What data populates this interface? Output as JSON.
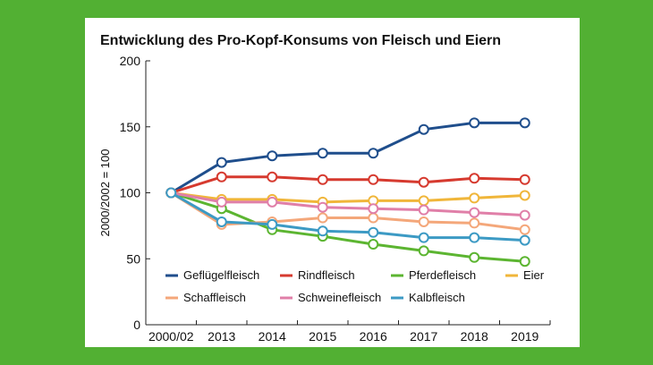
{
  "chart_data": {
    "type": "line",
    "title": "Entwicklung des Pro-Kopf-Konsums von Fleisch und Eiern",
    "ylabel": "2000/2002 = 100",
    "xlabel": "",
    "categories": [
      "2000/02",
      "2013",
      "2014",
      "2015",
      "2016",
      "2017",
      "2018",
      "2019"
    ],
    "ylim": [
      0,
      200
    ],
    "yticks": [
      0,
      50,
      100,
      150,
      200
    ],
    "grid": false,
    "legend_position": "bottom-inside",
    "series": [
      {
        "name": "Geflügelfleisch",
        "color": "#1f4e8c",
        "values": [
          100,
          123,
          128,
          130,
          130,
          148,
          153,
          153
        ]
      },
      {
        "name": "Rindfleisch",
        "color": "#d63a2f",
        "values": [
          100,
          112,
          112,
          110,
          110,
          108,
          111,
          110
        ]
      },
      {
        "name": "Pferdefleisch",
        "color": "#5cb531",
        "values": [
          100,
          88,
          72,
          67,
          61,
          56,
          51,
          48
        ]
      },
      {
        "name": "Eier",
        "color": "#f0b63a",
        "values": [
          100,
          95,
          95,
          93,
          94,
          94,
          96,
          98
        ]
      },
      {
        "name": "Schaffleisch",
        "color": "#f4a77a",
        "values": [
          100,
          76,
          78,
          81,
          81,
          78,
          77,
          72
        ]
      },
      {
        "name": "Schweinefleisch",
        "color": "#e07fa8",
        "values": [
          100,
          93,
          93,
          89,
          88,
          87,
          85,
          83
        ]
      },
      {
        "name": "Kalbfleisch",
        "color": "#3c9ac4",
        "values": [
          100,
          78,
          76,
          71,
          70,
          66,
          66,
          64
        ]
      }
    ]
  }
}
